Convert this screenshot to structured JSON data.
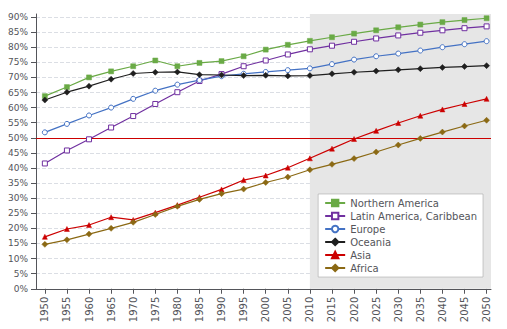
{
  "chart_data": {
    "type": "line",
    "x": [
      1950,
      1955,
      1960,
      1965,
      1970,
      1975,
      1980,
      1985,
      1990,
      1995,
      2000,
      2005,
      2010,
      2015,
      2020,
      2025,
      2030,
      2035,
      2040,
      2045,
      2050
    ],
    "xlim": [
      1948,
      2051
    ],
    "xticks": [
      1950,
      1955,
      1960,
      1965,
      1970,
      1975,
      1980,
      1985,
      1990,
      1995,
      2000,
      2005,
      2010,
      2015,
      2020,
      2025,
      2030,
      2035,
      2040,
      2045,
      2050
    ],
    "ylim": [
      0.0,
      0.91
    ],
    "yticks": [
      {
        "value": 0.0,
        "label": "0%"
      },
      {
        "value": 0.05,
        "label": "5%"
      },
      {
        "value": 0.1,
        "label": "10%"
      },
      {
        "value": 0.15,
        "label": "15%"
      },
      {
        "value": 0.2,
        "label": "20%"
      },
      {
        "value": 0.25,
        "label": "25%"
      },
      {
        "value": 0.3,
        "label": "30%"
      },
      {
        "value": 0.35,
        "label": "35%"
      },
      {
        "value": 0.4,
        "label": "40%"
      },
      {
        "value": 0.45,
        "label": "45%"
      },
      {
        "value": 0.5,
        "label": "50%"
      },
      {
        "value": 0.55,
        "label": "55%"
      },
      {
        "value": 0.6,
        "label": "60%"
      },
      {
        "value": 0.65,
        "label": "65%"
      },
      {
        "value": 0.7,
        "label": "70%"
      },
      {
        "value": 0.75,
        "label": "75%"
      },
      {
        "value": 0.8,
        "label": "80%"
      },
      {
        "value": 0.85,
        "label": "85%"
      },
      {
        "value": 0.9,
        "label": "90%"
      }
    ],
    "grid": true,
    "legend": "lower right",
    "shaded_from": 2010,
    "hline": {
      "y": 0.5,
      "color": "#cc0000"
    },
    "series": [
      {
        "name": "Northern America",
        "color": "#6aaa46",
        "marker": "square",
        "values": [
          0.638,
          0.668,
          0.7,
          0.72,
          0.737,
          0.756,
          0.737,
          0.748,
          0.754,
          0.77,
          0.792,
          0.808,
          0.821,
          0.833,
          0.845,
          0.856,
          0.866,
          0.875,
          0.883,
          0.89,
          0.896
        ]
      },
      {
        "name": "Latin America, Caribbean",
        "color": "#7030a0",
        "marker": "open_square",
        "values": [
          0.415,
          0.458,
          0.495,
          0.534,
          0.572,
          0.612,
          0.651,
          0.688,
          0.711,
          0.737,
          0.756,
          0.776,
          0.793,
          0.805,
          0.818,
          0.829,
          0.839,
          0.848,
          0.856,
          0.863,
          0.869
        ]
      },
      {
        "name": "Europe",
        "color": "#4472c4",
        "marker": "open_circle",
        "values": [
          0.518,
          0.546,
          0.574,
          0.6,
          0.629,
          0.656,
          0.676,
          0.691,
          0.704,
          0.712,
          0.718,
          0.724,
          0.73,
          0.744,
          0.759,
          0.77,
          0.779,
          0.789,
          0.8,
          0.81,
          0.82
        ]
      },
      {
        "name": "Oceania",
        "color": "#1f1f1f",
        "marker": "diamond",
        "values": [
          0.625,
          0.651,
          0.671,
          0.694,
          0.713,
          0.717,
          0.718,
          0.709,
          0.708,
          0.706,
          0.707,
          0.705,
          0.706,
          0.712,
          0.717,
          0.721,
          0.725,
          0.729,
          0.733,
          0.736,
          0.739
        ]
      },
      {
        "name": "Asia",
        "color": "#cc0000",
        "marker": "triangle",
        "values": [
          0.172,
          0.198,
          0.211,
          0.237,
          0.228,
          0.252,
          0.277,
          0.303,
          0.329,
          0.36,
          0.375,
          0.401,
          0.432,
          0.464,
          0.496,
          0.523,
          0.549,
          0.573,
          0.594,
          0.612,
          0.629
        ]
      },
      {
        "name": "Africa",
        "color": "#8b6914",
        "marker": "diamond",
        "values": [
          0.147,
          0.162,
          0.181,
          0.2,
          0.22,
          0.246,
          0.273,
          0.296,
          0.315,
          0.33,
          0.352,
          0.37,
          0.394,
          0.412,
          0.431,
          0.453,
          0.476,
          0.498,
          0.519,
          0.539,
          0.558
        ]
      }
    ]
  }
}
